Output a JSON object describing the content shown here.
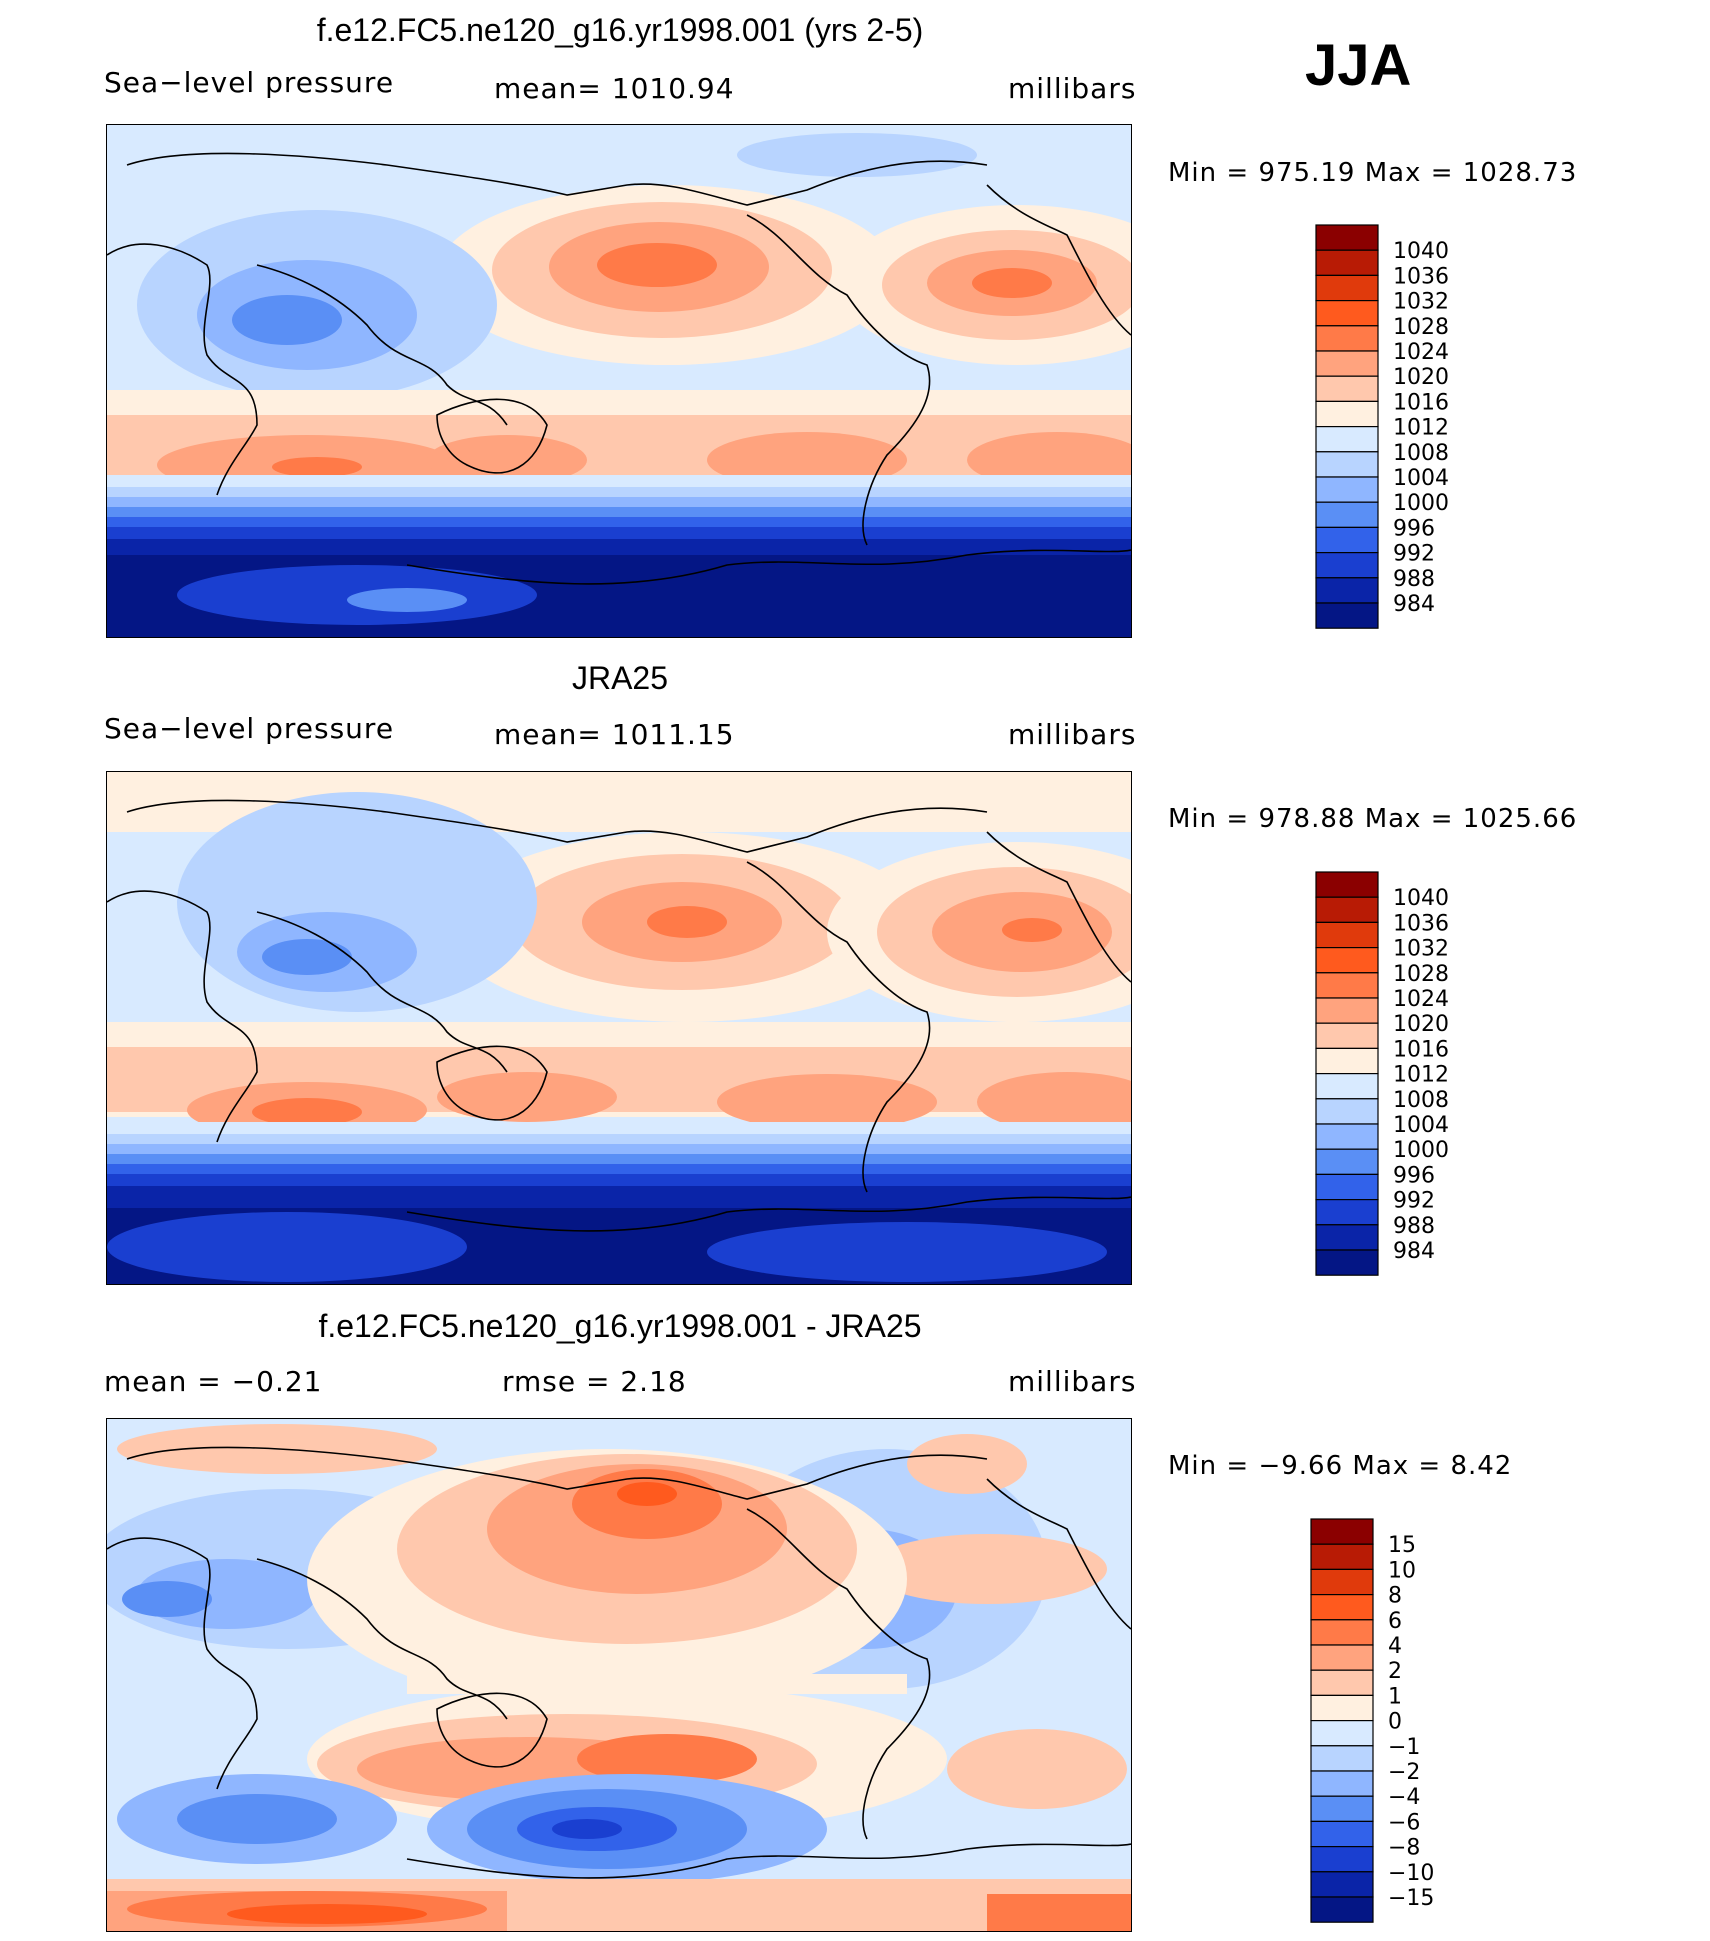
{
  "season": "JJA",
  "panels": [
    {
      "title": "f.e12.FC5.ne120_g16.yr1998.001 (yrs 2-5)",
      "left_label": "Sea−level pressure",
      "center_label": "mean=  1010.94",
      "right_label": "millibars",
      "minmax": "Min  =  975.19  Max  =  1028.73",
      "colorbar": {
        "levels": [
          "1040",
          "1036",
          "1032",
          "1028",
          "1024",
          "1020",
          "1016",
          "1012",
          "1008",
          "1004",
          "1000",
          "996",
          "992",
          "988",
          "984"
        ],
        "colors": [
          "#8b0000",
          "#b81b05",
          "#e03a0c",
          "#ff5a1e",
          "#ff7a48",
          "#ffa37e",
          "#ffc8ad",
          "#fff0e0",
          "#d8eaff",
          "#b8d4ff",
          "#8fb6ff",
          "#5a8ff5",
          "#3262ea",
          "#1a3fd0",
          "#0a24a8",
          "#041685"
        ]
      },
      "map_style": "sim"
    },
    {
      "title": "JRA25",
      "left_label": "Sea−level pressure",
      "center_label": "mean=  1011.15",
      "right_label": "millibars",
      "minmax": "Min  =  978.88  Max  =  1025.66",
      "colorbar": {
        "levels": [
          "1040",
          "1036",
          "1032",
          "1028",
          "1024",
          "1020",
          "1016",
          "1012",
          "1008",
          "1004",
          "1000",
          "996",
          "992",
          "988",
          "984"
        ],
        "colors": [
          "#8b0000",
          "#b81b05",
          "#e03a0c",
          "#ff5a1e",
          "#ff7a48",
          "#ffa37e",
          "#ffc8ad",
          "#fff0e0",
          "#d8eaff",
          "#b8d4ff",
          "#8fb6ff",
          "#5a8ff5",
          "#3262ea",
          "#1a3fd0",
          "#0a24a8",
          "#041685"
        ]
      },
      "map_style": "obs"
    },
    {
      "title": "f.e12.FC5.ne120_g16.yr1998.001 - JRA25",
      "left_label": "mean  =    −0.21",
      "center_label": "rmse  =      2.18",
      "right_label": "millibars",
      "minmax": "Min  =    −9.66  Max  =      8.42",
      "colorbar": {
        "levels": [
          "15",
          "10",
          "8",
          "6",
          "4",
          "2",
          "1",
          "0",
          "−1",
          "−2",
          "−4",
          "−6",
          "−8",
          "−10",
          "−15"
        ],
        "colors": [
          "#8b0000",
          "#b81b05",
          "#e03a0c",
          "#ff5a1e",
          "#ff7a48",
          "#ffa37e",
          "#ffc8ad",
          "#fff0e0",
          "#d8eaff",
          "#b8d4ff",
          "#8fb6ff",
          "#5a8ff5",
          "#3262ea",
          "#1a3fd0",
          "#0a24a8",
          "#041685"
        ]
      },
      "map_style": "diff"
    }
  ],
  "chart_data": [
    {
      "type": "heatmap",
      "title": "f.e12.FC5.ne120_g16.yr1998.001 (yrs 2-5)",
      "variable": "Sea−level pressure",
      "units": "millibars",
      "mean": 1010.94,
      "min": 975.19,
      "max": 1028.73,
      "contour_levels": [
        984,
        988,
        992,
        996,
        1000,
        1004,
        1008,
        1012,
        1016,
        1020,
        1024,
        1028,
        1032,
        1036,
        1040
      ]
    },
    {
      "type": "heatmap",
      "title": "JRA25",
      "variable": "Sea−level pressure",
      "units": "millibars",
      "mean": 1011.15,
      "min": 978.88,
      "max": 1025.66,
      "contour_levels": [
        984,
        988,
        992,
        996,
        1000,
        1004,
        1008,
        1012,
        1016,
        1020,
        1024,
        1028,
        1032,
        1036,
        1040
      ]
    },
    {
      "type": "heatmap",
      "title": "f.e12.FC5.ne120_g16.yr1998.001 - JRA25",
      "units": "millibars",
      "mean": -0.21,
      "rmse": 2.18,
      "min": -9.66,
      "max": 8.42,
      "contour_levels": [
        -15,
        -10,
        -8,
        -6,
        -4,
        -2,
        -1,
        0,
        1,
        2,
        4,
        6,
        8,
        10,
        15
      ]
    }
  ]
}
